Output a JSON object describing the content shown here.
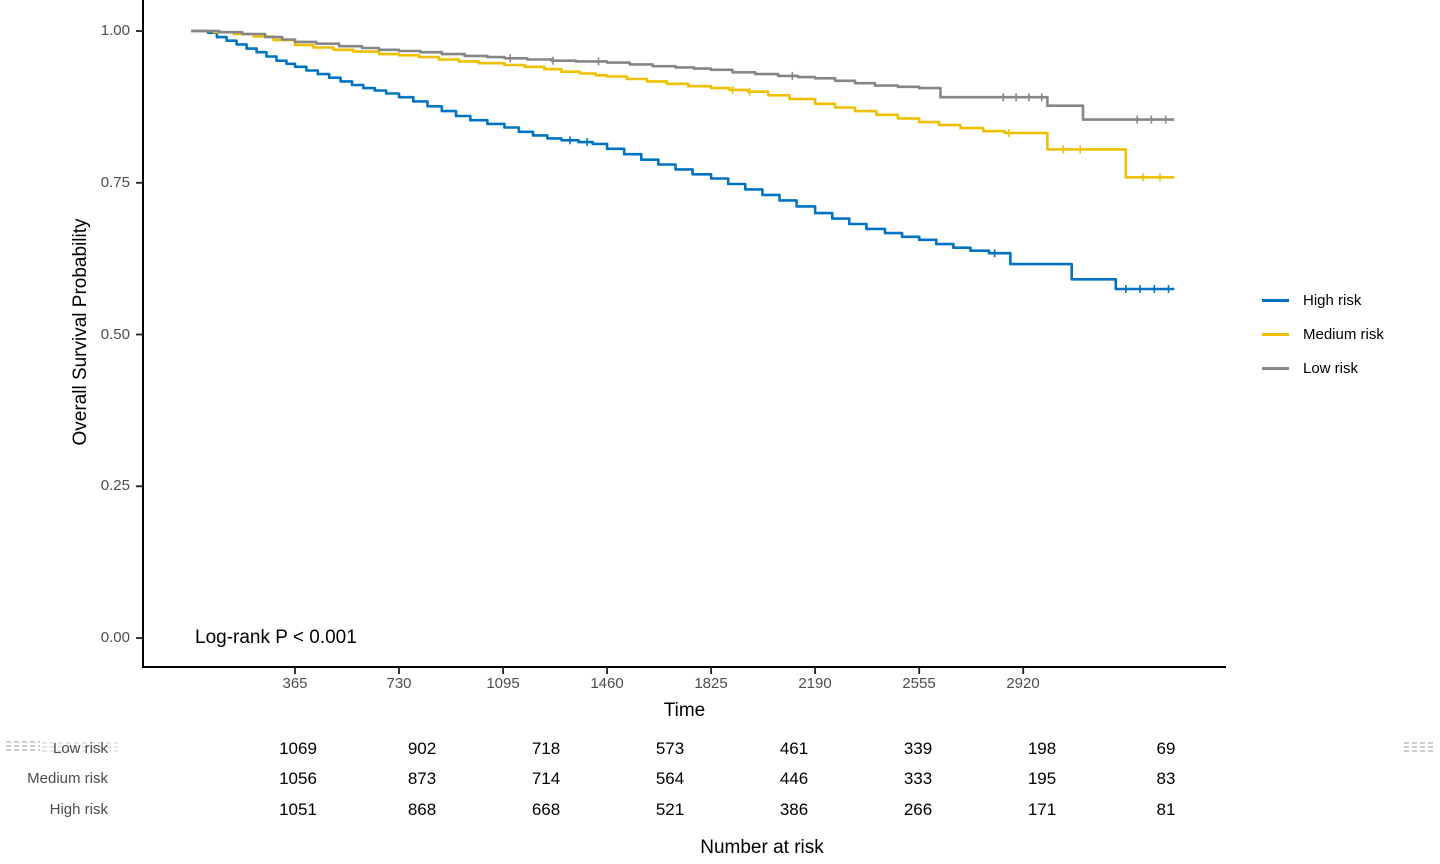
{
  "figure": {
    "background": "#ffffff"
  },
  "chart_data": {
    "type": "line",
    "subtype": "kaplan_meier_step_survival",
    "title": "",
    "xlabel": "Time",
    "ylabel": "Overall Survival Probability",
    "annotation": {
      "text": "Log-rank P < 0.001"
    },
    "xlim": [
      0,
      3650
    ],
    "ylim": [
      0,
      1.0
    ],
    "grid": false,
    "x_ticks": [
      365,
      730,
      1095,
      1460,
      1825,
      2190,
      2555,
      2920
    ],
    "y_ticks": [
      {
        "value": 0.0,
        "label": "0.00"
      },
      {
        "value": 0.25,
        "label": "0.25"
      },
      {
        "value": 0.5,
        "label": "0.50"
      },
      {
        "value": 0.75,
        "label": "0.75"
      },
      {
        "value": 1.0,
        "label": "1.00"
      }
    ],
    "legend": {
      "position": "right",
      "entries": [
        {
          "label": "High risk",
          "color": "#0073C2"
        },
        {
          "label": "Medium risk",
          "color": "#EFC000"
        },
        {
          "label": "Low risk",
          "color": "#868686"
        }
      ]
    },
    "series": [
      {
        "id": "high-risk",
        "name": "High risk",
        "color": "#0073C2",
        "points": [
          [
            0,
            1.0
          ],
          [
            60,
            0.997
          ],
          [
            91,
            0.99
          ],
          [
            125,
            0.984
          ],
          [
            160,
            0.978
          ],
          [
            195,
            0.971
          ],
          [
            230,
            0.965
          ],
          [
            265,
            0.958
          ],
          [
            300,
            0.951
          ],
          [
            335,
            0.946
          ],
          [
            365,
            0.941
          ],
          [
            405,
            0.935
          ],
          [
            445,
            0.929
          ],
          [
            485,
            0.923
          ],
          [
            525,
            0.917
          ],
          [
            565,
            0.911
          ],
          [
            605,
            0.906
          ],
          [
            645,
            0.902
          ],
          [
            685,
            0.897
          ],
          [
            730,
            0.891
          ],
          [
            780,
            0.884
          ],
          [
            830,
            0.876
          ],
          [
            880,
            0.868
          ],
          [
            930,
            0.86
          ],
          [
            980,
            0.853
          ],
          [
            1040,
            0.847
          ],
          [
            1100,
            0.841
          ],
          [
            1150,
            0.834
          ],
          [
            1200,
            0.828
          ],
          [
            1250,
            0.823
          ],
          [
            1300,
            0.82
          ],
          [
            1360,
            0.817
          ],
          [
            1410,
            0.814
          ],
          [
            1460,
            0.806
          ],
          [
            1520,
            0.797
          ],
          [
            1580,
            0.788
          ],
          [
            1640,
            0.78
          ],
          [
            1700,
            0.772
          ],
          [
            1760,
            0.764
          ],
          [
            1825,
            0.757
          ],
          [
            1885,
            0.748
          ],
          [
            1945,
            0.739
          ],
          [
            2005,
            0.73
          ],
          [
            2065,
            0.721
          ],
          [
            2125,
            0.711
          ],
          [
            2190,
            0.7
          ],
          [
            2250,
            0.691
          ],
          [
            2310,
            0.682
          ],
          [
            2370,
            0.674
          ],
          [
            2435,
            0.667
          ],
          [
            2495,
            0.661
          ],
          [
            2555,
            0.656
          ],
          [
            2615,
            0.649
          ],
          [
            2675,
            0.643
          ],
          [
            2735,
            0.638
          ],
          [
            2800,
            0.634
          ],
          [
            2875,
            0.616
          ],
          [
            3090,
            0.591
          ],
          [
            3245,
            0.575
          ],
          [
            3450,
            0.575
          ]
        ],
        "censor_times": [
          1330,
          1390,
          2820,
          3280,
          3330,
          3380,
          3430
        ]
      },
      {
        "id": "medium-risk",
        "name": "Medium risk",
        "color": "#EFC000",
        "points": [
          [
            0,
            1.0
          ],
          [
            80,
            0.998
          ],
          [
            150,
            0.995
          ],
          [
            220,
            0.991
          ],
          [
            290,
            0.985
          ],
          [
            365,
            0.977
          ],
          [
            430,
            0.973
          ],
          [
            500,
            0.969
          ],
          [
            570,
            0.966
          ],
          [
            660,
            0.962
          ],
          [
            730,
            0.96
          ],
          [
            800,
            0.957
          ],
          [
            870,
            0.953
          ],
          [
            940,
            0.95
          ],
          [
            1010,
            0.947
          ],
          [
            1100,
            0.944
          ],
          [
            1170,
            0.941
          ],
          [
            1240,
            0.937
          ],
          [
            1300,
            0.933
          ],
          [
            1365,
            0.93
          ],
          [
            1420,
            0.927
          ],
          [
            1460,
            0.925
          ],
          [
            1530,
            0.921
          ],
          [
            1600,
            0.917
          ],
          [
            1670,
            0.913
          ],
          [
            1745,
            0.909
          ],
          [
            1825,
            0.906
          ],
          [
            1890,
            0.903
          ],
          [
            1955,
            0.9
          ],
          [
            2025,
            0.894
          ],
          [
            2100,
            0.888
          ],
          [
            2190,
            0.88
          ],
          [
            2260,
            0.874
          ],
          [
            2330,
            0.868
          ],
          [
            2405,
            0.862
          ],
          [
            2480,
            0.856
          ],
          [
            2555,
            0.85
          ],
          [
            2625,
            0.845
          ],
          [
            2700,
            0.84
          ],
          [
            2780,
            0.835
          ],
          [
            2855,
            0.832
          ],
          [
            3005,
            0.805
          ],
          [
            3280,
            0.759
          ],
          [
            3450,
            0.759
          ]
        ],
        "censor_times": [
          1900,
          1960,
          2870,
          3060,
          3120,
          3340,
          3400
        ]
      },
      {
        "id": "low-risk",
        "name": "Low risk",
        "color": "#868686",
        "points": [
          [
            0,
            1.0
          ],
          [
            100,
            0.998
          ],
          [
            180,
            0.995
          ],
          [
            260,
            0.99
          ],
          [
            320,
            0.986
          ],
          [
            365,
            0.982
          ],
          [
            440,
            0.979
          ],
          [
            520,
            0.975
          ],
          [
            600,
            0.972
          ],
          [
            660,
            0.969
          ],
          [
            730,
            0.967
          ],
          [
            805,
            0.965
          ],
          [
            880,
            0.962
          ],
          [
            960,
            0.959
          ],
          [
            1040,
            0.957
          ],
          [
            1100,
            0.955
          ],
          [
            1180,
            0.953
          ],
          [
            1265,
            0.951
          ],
          [
            1350,
            0.95
          ],
          [
            1460,
            0.948
          ],
          [
            1540,
            0.945
          ],
          [
            1620,
            0.942
          ],
          [
            1700,
            0.94
          ],
          [
            1765,
            0.938
          ],
          [
            1825,
            0.936
          ],
          [
            1900,
            0.932
          ],
          [
            1980,
            0.929
          ],
          [
            2060,
            0.926
          ],
          [
            2130,
            0.924
          ],
          [
            2190,
            0.922
          ],
          [
            2260,
            0.918
          ],
          [
            2330,
            0.914
          ],
          [
            2400,
            0.91
          ],
          [
            2480,
            0.908
          ],
          [
            2555,
            0.906
          ],
          [
            2630,
            0.891
          ],
          [
            3005,
            0.877
          ],
          [
            3130,
            0.854
          ],
          [
            3450,
            0.854
          ]
        ],
        "censor_times": [
          1120,
          1270,
          1430,
          2110,
          2850,
          2895,
          2940,
          2985,
          3320,
          3370,
          3420
        ]
      }
    ]
  },
  "risk_table": {
    "title": "Number at risk",
    "time_points": [
      365,
      730,
      1095,
      1460,
      1825,
      2190,
      2555,
      2920
    ],
    "rows": [
      {
        "label": "Low risk",
        "counts": [
          1069,
          902,
          718,
          573,
          461,
          339,
          198,
          69
        ]
      },
      {
        "label": "Medium risk",
        "counts": [
          1056,
          873,
          714,
          564,
          446,
          333,
          195,
          83
        ]
      },
      {
        "label": "High risk",
        "counts": [
          1051,
          868,
          668,
          521,
          386,
          266,
          171,
          81
        ]
      }
    ]
  }
}
